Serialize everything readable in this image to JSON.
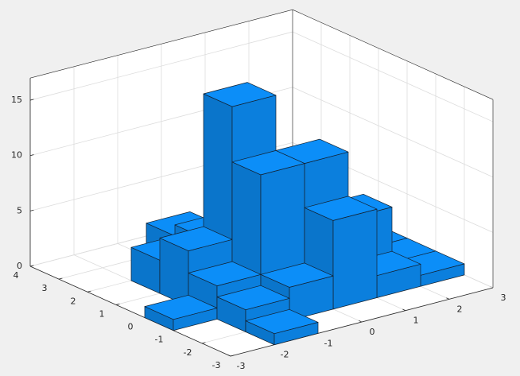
{
  "chart_data": {
    "type": "histogram2",
    "x_bins": [
      -3,
      -2,
      -1,
      0,
      1,
      2,
      3
    ],
    "y_bins": [
      -3,
      -2,
      -1,
      0,
      1,
      2,
      3,
      4
    ],
    "counts": [
      [
        0,
        0,
        1,
        0,
        0,
        0,
        0
      ],
      [
        1,
        2,
        3,
        5,
        3,
        0,
        0
      ],
      [
        0,
        3,
        12,
        17,
        4,
        3,
        0
      ],
      [
        0,
        8,
        12,
        5,
        0,
        0,
        0
      ],
      [
        0,
        2,
        6,
        2,
        0,
        0,
        0
      ],
      [
        0,
        1,
        1,
        1,
        0,
        0,
        0
      ]
    ],
    "color": "#0b7fdd",
    "xlim": [
      -3,
      3
    ],
    "ylim": [
      -3,
      4
    ],
    "zlim": [
      0,
      17
    ],
    "xticks": [
      -3,
      -2,
      -1,
      0,
      1,
      2,
      3
    ],
    "yticks": [
      -3,
      -2,
      -1,
      0,
      1,
      2,
      3,
      4
    ],
    "zticks": [
      0,
      5,
      10,
      15
    ],
    "grid": true
  }
}
